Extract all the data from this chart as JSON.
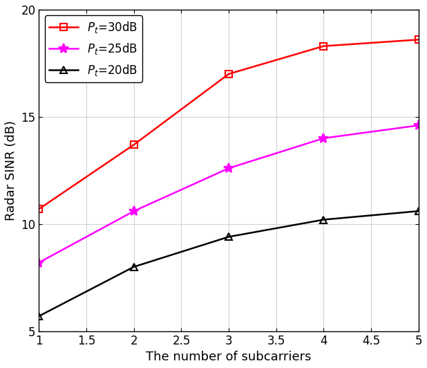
{
  "x": [
    1,
    2,
    3,
    4,
    5
  ],
  "series": [
    {
      "label": "$P_t$=30dB",
      "values": [
        10.7,
        13.7,
        17.0,
        18.3,
        18.6
      ],
      "color": "#ff0000",
      "marker": "s",
      "markerface": "none",
      "linewidth": 1.8,
      "markersize": 7
    },
    {
      "label": "$P_t$=25dB",
      "values": [
        8.2,
        10.6,
        12.6,
        14.0,
        14.6
      ],
      "color": "#ff00ff",
      "marker": "*",
      "markerface": "fill",
      "linewidth": 1.8,
      "markersize": 10
    },
    {
      "label": "$P_t$=20dB",
      "values": [
        5.7,
        8.0,
        9.4,
        10.2,
        10.6
      ],
      "color": "#000000",
      "marker": "^",
      "markerface": "none",
      "linewidth": 1.8,
      "markersize": 7
    }
  ],
  "xlabel": "The number of subcarriers",
  "ylabel": "Radar SINR (dB)",
  "xlim": [
    1,
    5
  ],
  "ylim": [
    5,
    20
  ],
  "xticks": [
    1,
    1.5,
    2,
    2.5,
    3,
    3.5,
    4,
    4.5,
    5
  ],
  "yticks": [
    5,
    10,
    15,
    20
  ],
  "grid": true,
  "legend_loc": "upper left",
  "label_fontsize": 13,
  "tick_fontsize": 12,
  "legend_fontsize": 12,
  "figsize": [
    6.18,
    5.32
  ],
  "dpi": 100,
  "bg_color": "#ffffff",
  "spine_color": "#000000",
  "grid_color": "#d3d3d3",
  "grid_linewidth": 0.8
}
